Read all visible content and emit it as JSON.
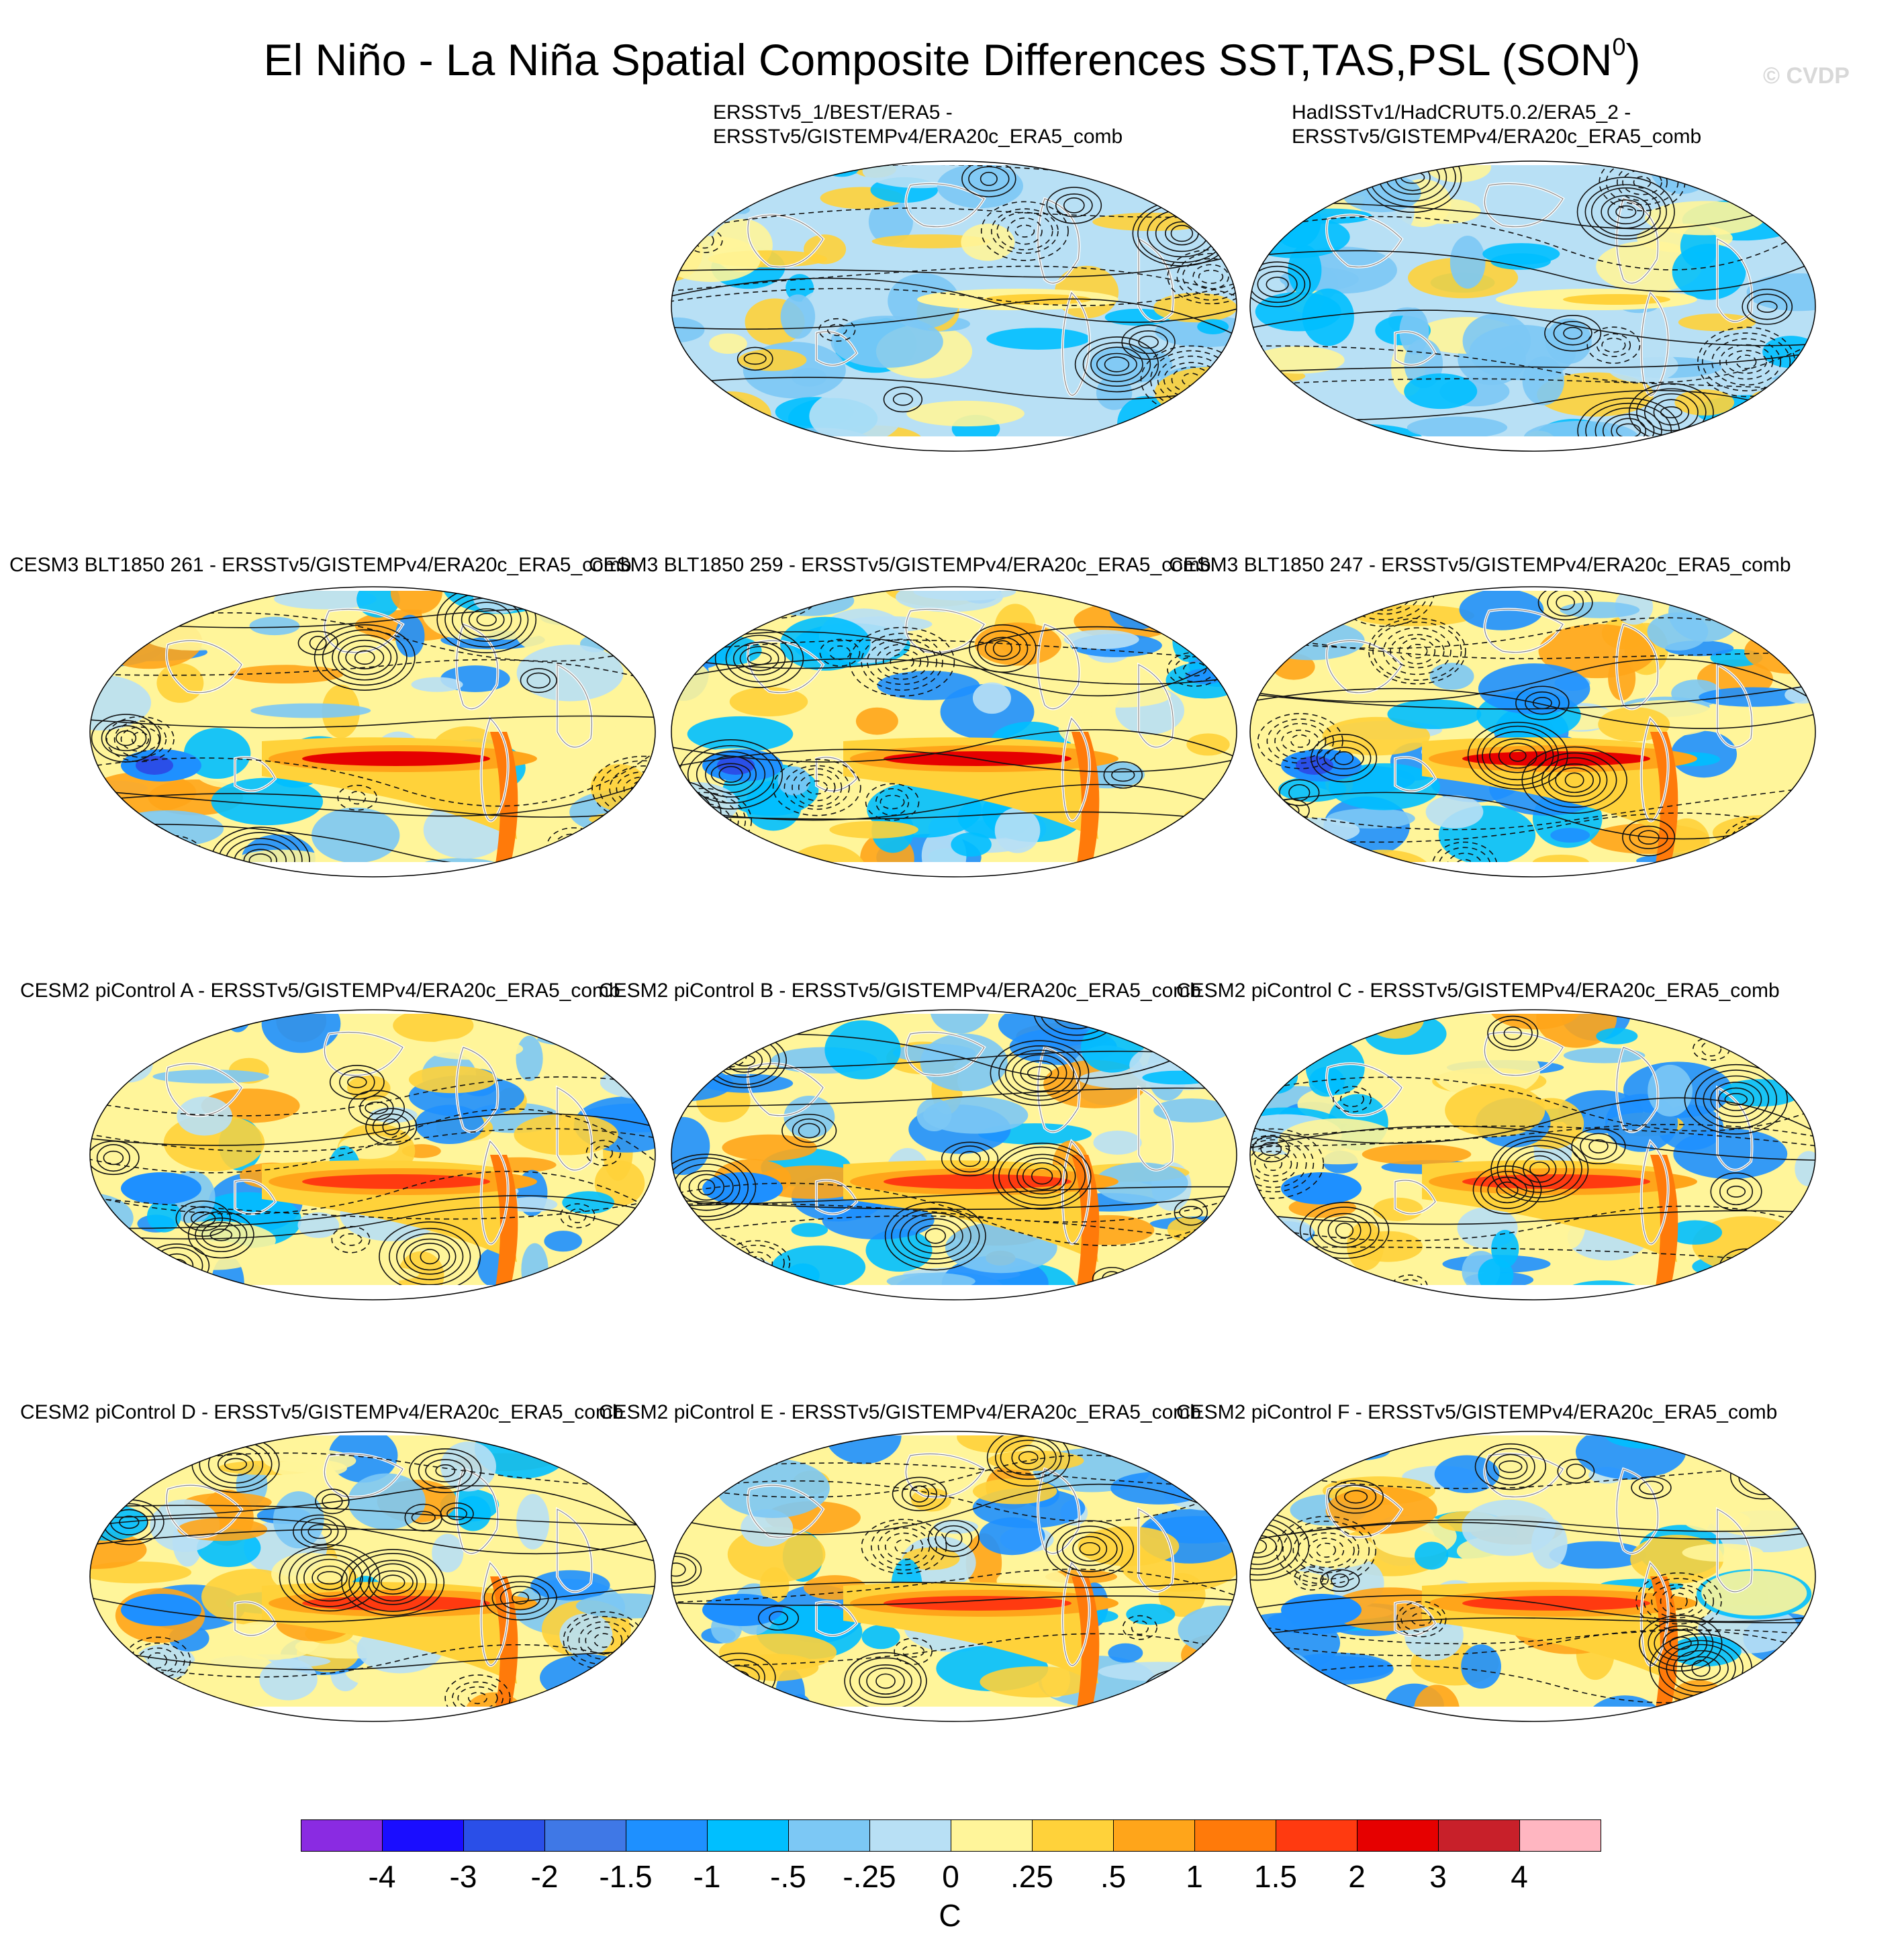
{
  "title": "El Niño - La Niña Spatial Composite Differences SST,TAS,PSL (SON",
  "title_superscript": "0",
  "title_close": ")",
  "watermark": "© CVDP",
  "panels": [
    {
      "id": "obs1",
      "label": "ERSSTv5_1/BEST/ERA5 -\nERSSTv5/GISTEMPv4/ERA20c_ERA5_comb",
      "pattern": "obs"
    },
    {
      "id": "obs2",
      "label": "HadISSTv1/HadCRUT5.0.2/ERA5_2 -\nERSSTv5/GISTEMPv4/ERA20c_ERA5_comb",
      "pattern": "obs"
    },
    {
      "id": "cesm3-261",
      "label": "CESM3 BLT1850 261 - ERSSTv5/GISTEMPv4/ERA20c_ERA5_comb",
      "pattern": "model-strong"
    },
    {
      "id": "cesm3-259",
      "label": "CESM3 BLT1850 259 - ERSSTv5/GISTEMPv4/ERA20c_ERA5_comb",
      "pattern": "model-strong"
    },
    {
      "id": "cesm3-247",
      "label": "CESM3 BLT1850 247 - ERSSTv5/GISTEMPv4/ERA20c_ERA5_comb",
      "pattern": "model-strong"
    },
    {
      "id": "cesm2-a",
      "label": "CESM2 piControl A - ERSSTv5/GISTEMPv4/ERA20c_ERA5_comb",
      "pattern": "model"
    },
    {
      "id": "cesm2-b",
      "label": "CESM2 piControl B - ERSSTv5/GISTEMPv4/ERA20c_ERA5_comb",
      "pattern": "model"
    },
    {
      "id": "cesm2-c",
      "label": "CESM2 piControl C - ERSSTv5/GISTEMPv4/ERA20c_ERA5_comb",
      "pattern": "model"
    },
    {
      "id": "cesm2-d",
      "label": "CESM2 piControl D - ERSSTv5/GISTEMPv4/ERA20c_ERA5_comb",
      "pattern": "model"
    },
    {
      "id": "cesm2-e",
      "label": "CESM2 piControl E - ERSSTv5/GISTEMPv4/ERA20c_ERA5_comb",
      "pattern": "model"
    },
    {
      "id": "cesm2-f",
      "label": "CESM2 piControl F - ERSSTv5/GISTEMPv4/ERA20c_ERA5_comb",
      "pattern": "model"
    }
  ],
  "colorbar": {
    "unit": "C",
    "ticks": [
      "-4",
      "-3",
      "-2",
      "-1.5",
      "-1",
      "-.5",
      "-.25",
      "0",
      ".25",
      ".5",
      "1",
      "1.5",
      "2",
      "3",
      "4"
    ],
    "colors": [
      "#8a2be2",
      "#1a0dff",
      "#2a4fe8",
      "#3f78e6",
      "#1e90ff",
      "#00bfff",
      "#7cc8f5",
      "#b8e0f5",
      "#fff59a",
      "#ffd23a",
      "#ffa51a",
      "#ff7a0a",
      "#ff3a10",
      "#e60000",
      "#c8202a",
      "#ffb6c1"
    ]
  }
}
